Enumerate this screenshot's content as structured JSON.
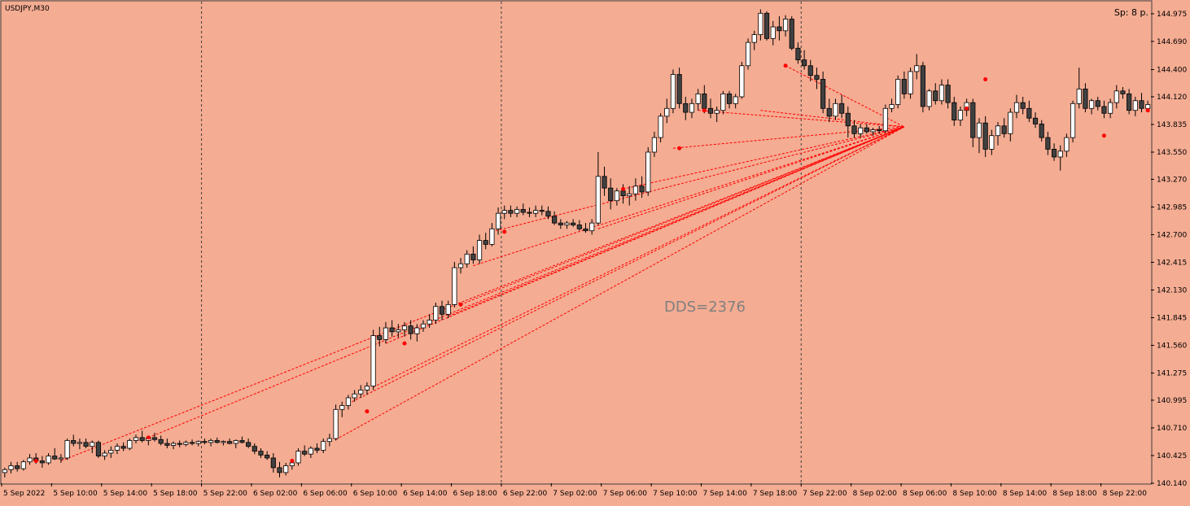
{
  "window": {
    "symbol_label": "USDJPY,M30",
    "spread_label": "Sp: 8 p.",
    "dds_label": "DDS=2376"
  },
  "colors": {
    "background": "#F4AC92",
    "bull_body": "#FFFFFF",
    "bear_body": "#404040",
    "wick": "#000000",
    "link_line": "#FF0000",
    "marker": "#FF0000",
    "grid": "#404040"
  },
  "chart_data": {
    "type": "candlestick",
    "symbol": "USDJPY",
    "timeframe": "M30",
    "ylim": [
      140.14,
      145.1
    ],
    "y_ticks": [
      "144.975",
      "144.690",
      "144.400",
      "144.120",
      "143.835",
      "143.550",
      "143.270",
      "142.985",
      "142.700",
      "142.415",
      "142.130",
      "141.845",
      "141.560",
      "141.275",
      "140.995",
      "140.710",
      "140.425",
      "140.140"
    ],
    "x_ticks": [
      "5 Sep 2022",
      "5 Sep 10:00",
      "5 Sep 14:00",
      "5 Sep 18:00",
      "5 Sep 22:00",
      "6 Sep 02:00",
      "6 Sep 06:00",
      "6 Sep 10:00",
      "6 Sep 14:00",
      "6 Sep 18:00",
      "6 Sep 22:00",
      "7 Sep 02:00",
      "7 Sep 06:00",
      "7 Sep 10:00",
      "7 Sep 14:00",
      "7 Sep 18:00",
      "7 Sep 22:00",
      "8 Sep 02:00",
      "8 Sep 06:00",
      "8 Sep 10:00",
      "8 Sep 14:00",
      "8 Sep 18:00",
      "8 Sep 22:00"
    ],
    "day_separators": [
      "5 Sep 22:00",
      "6 Sep 22:00",
      "7 Sep 22:00"
    ],
    "ohlc": [
      [
        140.25,
        140.3,
        140.2,
        140.28
      ],
      [
        140.28,
        140.36,
        140.24,
        140.32
      ],
      [
        140.32,
        140.36,
        140.26,
        140.29
      ],
      [
        140.29,
        140.38,
        140.27,
        140.36
      ],
      [
        140.36,
        140.44,
        140.33,
        140.4
      ],
      [
        140.4,
        140.45,
        140.34,
        140.37
      ],
      [
        140.37,
        140.42,
        140.3,
        140.35
      ],
      [
        140.35,
        140.45,
        140.33,
        140.42
      ],
      [
        140.42,
        140.5,
        140.38,
        140.39
      ],
      [
        140.39,
        140.44,
        140.35,
        140.4
      ],
      [
        140.4,
        140.6,
        140.38,
        140.58
      ],
      [
        140.58,
        140.64,
        140.52,
        140.55
      ],
      [
        140.55,
        140.6,
        140.49,
        140.56
      ],
      [
        140.56,
        140.6,
        140.5,
        140.52
      ],
      [
        140.52,
        140.58,
        140.45,
        140.56
      ],
      [
        140.56,
        140.58,
        140.4,
        140.42
      ],
      [
        140.42,
        140.48,
        140.38,
        140.45
      ],
      [
        140.45,
        140.52,
        140.4,
        140.48
      ],
      [
        140.48,
        140.55,
        140.44,
        140.52
      ],
      [
        140.52,
        140.56,
        140.47,
        140.5
      ],
      [
        140.5,
        140.6,
        140.48,
        140.58
      ],
      [
        140.58,
        140.64,
        140.55,
        140.61
      ],
      [
        140.61,
        140.68,
        140.56,
        140.58
      ],
      [
        140.58,
        140.63,
        140.53,
        140.61
      ],
      [
        140.61,
        140.66,
        140.57,
        140.59
      ],
      [
        140.59,
        140.63,
        140.53,
        140.55
      ],
      [
        140.55,
        140.6,
        140.5,
        140.53
      ],
      [
        140.53,
        140.57,
        140.49,
        140.55
      ],
      [
        140.55,
        140.58,
        140.51,
        140.54
      ],
      [
        140.54,
        140.58,
        140.52,
        140.56
      ],
      [
        140.56,
        140.59,
        140.53,
        140.55
      ],
      [
        140.55,
        140.58,
        140.52,
        140.57
      ],
      [
        140.57,
        140.6,
        140.54,
        140.56
      ],
      [
        140.56,
        140.6,
        140.52,
        140.58
      ],
      [
        140.58,
        140.61,
        140.55,
        140.56
      ],
      [
        140.56,
        140.58,
        140.53,
        140.57
      ],
      [
        140.57,
        140.6,
        140.54,
        140.55
      ],
      [
        140.55,
        140.59,
        140.5,
        140.58
      ],
      [
        140.58,
        140.62,
        140.55,
        140.56
      ],
      [
        140.56,
        140.6,
        140.5,
        140.52
      ],
      [
        140.52,
        140.55,
        140.44,
        140.47
      ],
      [
        140.47,
        140.5,
        140.4,
        140.43
      ],
      [
        140.43,
        140.47,
        140.38,
        140.4
      ],
      [
        140.4,
        140.45,
        140.25,
        140.3
      ],
      [
        140.3,
        140.36,
        140.2,
        140.25
      ],
      [
        140.25,
        140.35,
        140.22,
        140.32
      ],
      [
        140.32,
        140.38,
        140.28,
        140.35
      ],
      [
        140.35,
        140.5,
        140.32,
        140.47
      ],
      [
        140.47,
        140.53,
        140.42,
        140.44
      ],
      [
        140.44,
        140.52,
        140.4,
        140.5
      ],
      [
        140.5,
        140.55,
        140.45,
        140.48
      ],
      [
        140.48,
        140.6,
        140.45,
        140.57
      ],
      [
        140.57,
        140.65,
        140.52,
        140.6
      ],
      [
        140.6,
        140.95,
        140.58,
        140.9
      ],
      [
        140.9,
        140.98,
        140.82,
        140.94
      ],
      [
        140.94,
        141.05,
        140.9,
        141.02
      ],
      [
        141.02,
        141.1,
        140.98,
        141.06
      ],
      [
        141.06,
        141.15,
        141.02,
        141.1
      ],
      [
        141.1,
        141.18,
        141.05,
        141.14
      ],
      [
        141.14,
        141.72,
        141.1,
        141.66
      ],
      [
        141.66,
        141.75,
        141.55,
        141.62
      ],
      [
        141.62,
        141.8,
        141.58,
        141.74
      ],
      [
        141.74,
        141.82,
        141.65,
        141.7
      ],
      [
        141.7,
        141.78,
        141.64,
        141.72
      ],
      [
        141.72,
        141.8,
        141.65,
        141.76
      ],
      [
        141.76,
        141.82,
        141.62,
        141.68
      ],
      [
        141.68,
        141.78,
        141.6,
        141.74
      ],
      [
        141.74,
        141.82,
        141.7,
        141.78
      ],
      [
        141.78,
        141.88,
        141.74,
        141.82
      ],
      [
        141.82,
        142.0,
        141.78,
        141.96
      ],
      [
        141.96,
        142.02,
        141.82,
        141.88
      ],
      [
        141.88,
        142.02,
        141.84,
        141.98
      ],
      [
        141.98,
        142.42,
        141.95,
        142.36
      ],
      [
        142.36,
        142.46,
        142.3,
        142.4
      ],
      [
        142.4,
        142.54,
        142.36,
        142.5
      ],
      [
        142.5,
        142.58,
        142.4,
        142.44
      ],
      [
        142.44,
        142.7,
        142.4,
        142.64
      ],
      [
        142.64,
        142.72,
        142.55,
        142.6
      ],
      [
        142.6,
        142.82,
        142.58,
        142.76
      ],
      [
        142.76,
        142.98,
        142.7,
        142.92
      ],
      [
        142.92,
        143.0,
        142.86,
        142.95
      ],
      [
        142.95,
        143.0,
        142.88,
        142.92
      ],
      [
        142.92,
        142.99,
        142.88,
        142.96
      ],
      [
        142.96,
        143.02,
        142.9,
        142.93
      ],
      [
        142.93,
        142.98,
        142.88,
        142.92
      ],
      [
        142.92,
        143.0,
        142.88,
        142.95
      ],
      [
        142.95,
        143.0,
        142.9,
        142.94
      ],
      [
        142.94,
        142.99,
        142.86,
        142.89
      ],
      [
        142.89,
        142.94,
        142.8,
        142.82
      ],
      [
        142.82,
        142.86,
        142.76,
        142.8
      ],
      [
        142.8,
        142.84,
        142.76,
        142.82
      ],
      [
        142.82,
        142.86,
        142.78,
        142.8
      ],
      [
        142.8,
        142.85,
        142.74,
        142.76
      ],
      [
        142.76,
        142.82,
        142.72,
        142.74
      ],
      [
        142.74,
        142.86,
        142.7,
        142.82
      ],
      [
        142.82,
        143.55,
        142.8,
        143.3
      ],
      [
        143.3,
        143.4,
        143.1,
        143.18
      ],
      [
        143.18,
        143.28,
        142.96,
        143.05
      ],
      [
        143.05,
        143.18,
        143.0,
        143.15
      ],
      [
        143.15,
        143.22,
        143.02,
        143.1
      ],
      [
        143.1,
        143.2,
        143.0,
        143.12
      ],
      [
        143.12,
        143.28,
        143.05,
        143.2
      ],
      [
        143.2,
        143.3,
        143.08,
        143.14
      ],
      [
        143.14,
        143.6,
        143.1,
        143.55
      ],
      [
        143.55,
        143.76,
        143.5,
        143.7
      ],
      [
        143.7,
        143.95,
        143.65,
        143.92
      ],
      [
        143.92,
        144.1,
        143.85,
        144.0
      ],
      [
        144.0,
        144.4,
        143.95,
        144.35
      ],
      [
        144.35,
        144.42,
        144.0,
        144.05
      ],
      [
        144.05,
        144.12,
        143.88,
        143.96
      ],
      [
        143.96,
        144.1,
        143.9,
        144.05
      ],
      [
        144.05,
        144.2,
        143.98,
        144.15
      ],
      [
        144.15,
        144.24,
        143.95,
        144.0
      ],
      [
        144.0,
        144.1,
        143.9,
        143.95
      ],
      [
        143.95,
        144.02,
        143.86,
        143.98
      ],
      [
        143.98,
        144.18,
        143.94,
        144.15
      ],
      [
        144.15,
        144.18,
        144.0,
        144.05
      ],
      [
        144.05,
        144.15,
        144.0,
        144.12
      ],
      [
        144.12,
        144.48,
        144.1,
        144.44
      ],
      [
        144.44,
        144.72,
        144.4,
        144.68
      ],
      [
        144.68,
        144.8,
        144.6,
        144.76
      ],
      [
        144.76,
        145.02,
        144.7,
        144.98
      ],
      [
        144.98,
        145.0,
        144.7,
        144.72
      ],
      [
        144.72,
        144.9,
        144.65,
        144.84
      ],
      [
        144.84,
        144.95,
        144.7,
        144.8
      ],
      [
        144.8,
        144.96,
        144.74,
        144.92
      ],
      [
        144.92,
        144.95,
        144.6,
        144.62
      ],
      [
        144.62,
        144.68,
        144.46,
        144.5
      ],
      [
        144.5,
        144.6,
        144.4,
        144.44
      ],
      [
        144.44,
        144.5,
        144.28,
        144.34
      ],
      [
        144.34,
        144.42,
        144.2,
        144.3
      ],
      [
        144.3,
        144.38,
        143.95,
        144.0
      ],
      [
        144.0,
        144.1,
        143.86,
        143.92
      ],
      [
        143.92,
        144.1,
        143.88,
        144.05
      ],
      [
        144.05,
        144.14,
        143.9,
        143.95
      ],
      [
        143.95,
        144.02,
        143.7,
        143.82
      ],
      [
        143.82,
        143.88,
        143.7,
        143.74
      ],
      [
        143.74,
        143.84,
        143.7,
        143.8
      ],
      [
        143.8,
        143.84,
        143.74,
        143.76
      ],
      [
        143.76,
        143.8,
        143.72,
        143.78
      ],
      [
        143.78,
        143.82,
        143.74,
        143.77
      ],
      [
        143.77,
        144.04,
        143.75,
        144.0
      ],
      [
        144.0,
        144.1,
        143.96,
        144.04
      ],
      [
        144.04,
        144.34,
        144.0,
        144.3
      ],
      [
        144.3,
        144.38,
        144.1,
        144.15
      ],
      [
        144.15,
        144.42,
        144.1,
        144.38
      ],
      [
        144.38,
        144.56,
        144.3,
        144.44
      ],
      [
        144.44,
        144.48,
        143.96,
        144.02
      ],
      [
        144.02,
        144.2,
        143.98,
        144.18
      ],
      [
        144.18,
        144.26,
        144.04,
        144.08
      ],
      [
        144.08,
        144.3,
        144.04,
        144.24
      ],
      [
        144.24,
        144.3,
        144.0,
        144.06
      ],
      [
        144.06,
        144.12,
        143.82,
        143.88
      ],
      [
        143.88,
        144.02,
        143.82,
        143.98
      ],
      [
        143.98,
        144.1,
        143.92,
        144.06
      ],
      [
        144.06,
        144.1,
        143.6,
        143.7
      ],
      [
        143.7,
        143.9,
        143.54,
        143.85
      ],
      [
        143.85,
        143.92,
        143.5,
        143.58
      ],
      [
        143.58,
        143.78,
        143.52,
        143.72
      ],
      [
        143.72,
        143.86,
        143.62,
        143.82
      ],
      [
        143.82,
        143.9,
        143.7,
        143.74
      ],
      [
        143.74,
        144.0,
        143.66,
        143.96
      ],
      [
        143.96,
        144.14,
        143.9,
        144.06
      ],
      [
        144.06,
        144.12,
        143.94,
        144.0
      ],
      [
        144.0,
        144.08,
        143.86,
        143.9
      ],
      [
        143.9,
        143.96,
        143.8,
        143.84
      ],
      [
        143.84,
        143.88,
        143.66,
        143.7
      ],
      [
        143.7,
        143.76,
        143.52,
        143.58
      ],
      [
        143.58,
        143.64,
        143.46,
        143.5
      ],
      [
        143.5,
        143.62,
        143.36,
        143.56
      ],
      [
        143.56,
        143.74,
        143.5,
        143.7
      ],
      [
        143.7,
        144.08,
        143.65,
        144.05
      ],
      [
        144.05,
        144.42,
        144.0,
        144.2
      ],
      [
        144.2,
        144.26,
        143.96,
        144.0
      ],
      [
        144.0,
        144.1,
        143.94,
        144.08
      ],
      [
        144.08,
        144.12,
        143.98,
        144.02
      ],
      [
        144.02,
        144.08,
        143.9,
        143.95
      ],
      [
        143.95,
        144.1,
        143.9,
        144.06
      ],
      [
        144.06,
        144.24,
        144.0,
        144.18
      ],
      [
        144.18,
        144.22,
        144.1,
        144.15
      ],
      [
        144.15,
        144.2,
        143.94,
        143.98
      ],
      [
        143.98,
        144.12,
        143.92,
        144.08
      ],
      [
        144.08,
        144.16,
        143.96,
        144.0
      ],
      [
        144.0,
        144.08,
        143.96,
        144.04
      ]
    ],
    "link_lines": {
      "end": {
        "time_index": 144,
        "price": 143.81
      },
      "starts": [
        {
          "time_index": 9,
          "price": 140.37
        },
        {
          "time_index": 23,
          "price": 140.61
        },
        {
          "time_index": 53,
          "price": 140.59
        },
        {
          "time_index": 55,
          "price": 140.96
        },
        {
          "time_index": 59,
          "price": 141.13
        },
        {
          "time_index": 61,
          "price": 141.58
        },
        {
          "time_index": 71,
          "price": 141.86
        },
        {
          "time_index": 73,
          "price": 141.98
        },
        {
          "time_index": 75,
          "price": 142.38
        },
        {
          "time_index": 78,
          "price": 142.73
        },
        {
          "time_index": 95,
          "price": 142.76
        },
        {
          "time_index": 99,
          "price": 143.17
        },
        {
          "time_index": 107,
          "price": 143.59
        },
        {
          "time_index": 111,
          "price": 143.98
        },
        {
          "time_index": 121,
          "price": 143.98
        },
        {
          "time_index": 125,
          "price": 144.44
        }
      ]
    },
    "markers": [
      {
        "time_index": 5,
        "price": 140.37
      },
      {
        "time_index": 23,
        "price": 140.61
      },
      {
        "time_index": 46,
        "price": 140.37
      },
      {
        "time_index": 58,
        "price": 140.88
      },
      {
        "time_index": 64,
        "price": 141.58
      },
      {
        "time_index": 73,
        "price": 141.98
      },
      {
        "time_index": 80,
        "price": 142.73
      },
      {
        "time_index": 99,
        "price": 143.17
      },
      {
        "time_index": 108,
        "price": 143.59
      },
      {
        "time_index": 112,
        "price": 143.98
      },
      {
        "time_index": 125,
        "price": 144.44
      },
      {
        "time_index": 154,
        "price": 144.0
      },
      {
        "time_index": 157,
        "price": 144.3
      },
      {
        "time_index": 176,
        "price": 143.72
      },
      {
        "time_index": 183,
        "price": 143.98
      }
    ]
  }
}
